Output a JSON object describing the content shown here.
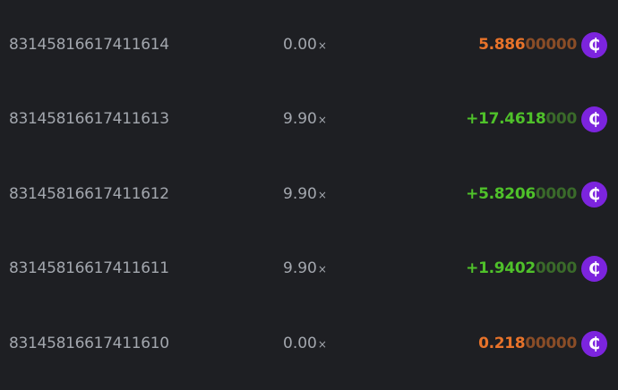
{
  "colors": {
    "loss": "#e8732a",
    "loss_dim": "#8a4d27",
    "win": "#4fc12a",
    "win_dim": "#3a6a2a",
    "coin": "#7c24de"
  },
  "coin_icon": "currency-coin-icon",
  "coin_glyph": "₵",
  "rows": [
    {
      "id": "83145816617411614",
      "multiplier": "0.00",
      "mult_suffix": "×",
      "amount_main": "5.886",
      "amount_trail": "00000",
      "status": "loss"
    },
    {
      "id": "83145816617411613",
      "multiplier": "9.90",
      "mult_suffix": "×",
      "amount_main": "+17.4618",
      "amount_trail": "000",
      "status": "win"
    },
    {
      "id": "83145816617411612",
      "multiplier": "9.90",
      "mult_suffix": "×",
      "amount_main": "+5.8206",
      "amount_trail": "0000",
      "status": "win"
    },
    {
      "id": "83145816617411611",
      "multiplier": "9.90",
      "mult_suffix": "×",
      "amount_main": "+1.9402",
      "amount_trail": "0000",
      "status": "win"
    },
    {
      "id": "83145816617411610",
      "multiplier": "0.00",
      "mult_suffix": "×",
      "amount_main": "0.218",
      "amount_trail": "00000",
      "status": "loss"
    }
  ]
}
